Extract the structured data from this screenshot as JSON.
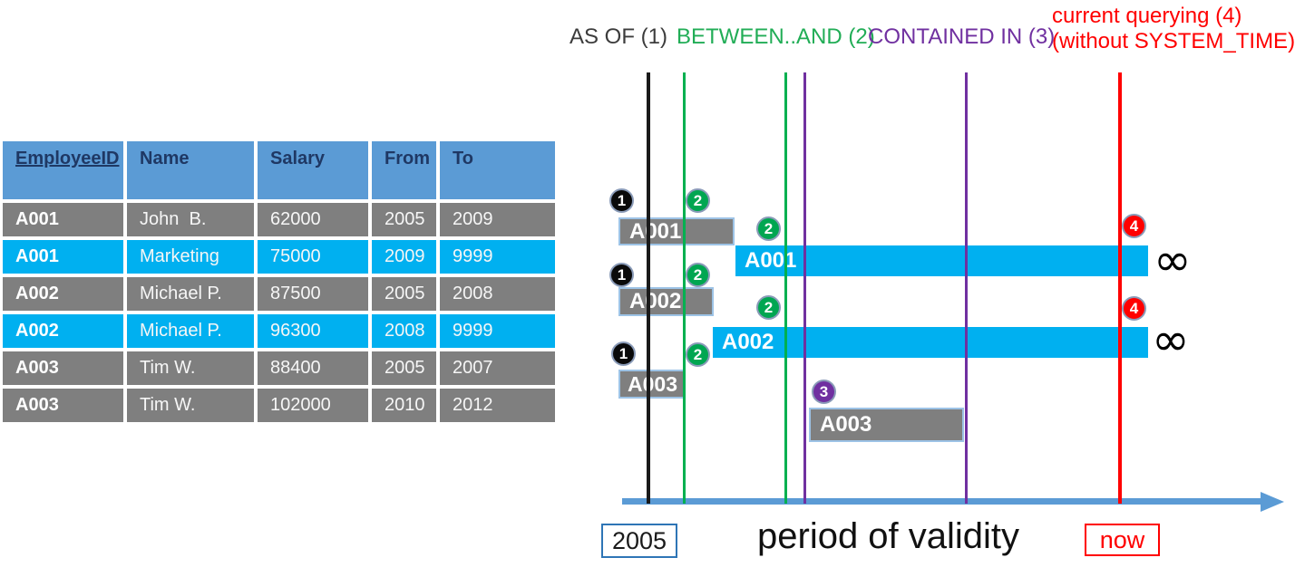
{
  "table": {
    "headers": [
      "EmployeeID",
      "Name",
      "Salary",
      "From",
      "To"
    ],
    "rows": [
      {
        "cells": [
          "A001",
          "John  B.",
          "62000",
          "2005",
          "2009"
        ],
        "state": "history"
      },
      {
        "cells": [
          "A001",
          "Marketing",
          "75000",
          "2009",
          "9999"
        ],
        "state": "current"
      },
      {
        "cells": [
          "A002",
          "Michael P.",
          "87500",
          "2005",
          "2008"
        ],
        "state": "history"
      },
      {
        "cells": [
          "A002",
          "Michael P.",
          "96300",
          "2008",
          "9999"
        ],
        "state": "current"
      },
      {
        "cells": [
          "A003",
          "Tim W.",
          "88400",
          "2005",
          "2007"
        ],
        "state": "history"
      },
      {
        "cells": [
          "A003",
          "Tim W.",
          "102000",
          "2010",
          "2012"
        ],
        "state": "history"
      }
    ]
  },
  "diagram": {
    "legend": [
      {
        "label": "AS OF (1)",
        "color": "#3C3C3C"
      },
      {
        "label": "BETWEEN..AND (2)",
        "color": "#00B050"
      },
      {
        "label": "CONTAINED IN (3)",
        "color": "#7030A0"
      },
      {
        "label": "current querying (4)",
        "label2": "(without SYSTEM_TIME)",
        "color": "#FF0000"
      }
    ],
    "bars": [
      {
        "label": "A001",
        "kind": "history"
      },
      {
        "label": "A001",
        "kind": "current"
      },
      {
        "label": "A002",
        "kind": "history"
      },
      {
        "label": "A002",
        "kind": "current"
      },
      {
        "label": "A003",
        "kind": "history"
      },
      {
        "label": "A003",
        "kind": "history"
      }
    ],
    "markers": [
      {
        "number": "1",
        "type": "as-of"
      },
      {
        "number": "2",
        "type": "between-and"
      },
      {
        "number": "2",
        "type": "between-and"
      },
      {
        "number": "4",
        "type": "current-querying"
      },
      {
        "number": "1",
        "type": "as-of"
      },
      {
        "number": "2",
        "type": "between-and"
      },
      {
        "number": "2",
        "type": "between-and"
      },
      {
        "number": "4",
        "type": "current-querying"
      },
      {
        "number": "1",
        "type": "as-of"
      },
      {
        "number": "2",
        "type": "between-and"
      },
      {
        "number": "3",
        "type": "contained-in"
      }
    ],
    "infinity": "∞",
    "axis": {
      "start_label": "2005",
      "axis_label": "period of validity",
      "end_label": "now"
    }
  },
  "colors": {
    "header_blue": "#5B9BD5",
    "history_gray": "#7F7F7F",
    "current_cyan": "#00B0F0",
    "green": "#00B050",
    "purple": "#7030A0",
    "red": "#FF0000",
    "axis_blue": "#5B9BD5"
  }
}
